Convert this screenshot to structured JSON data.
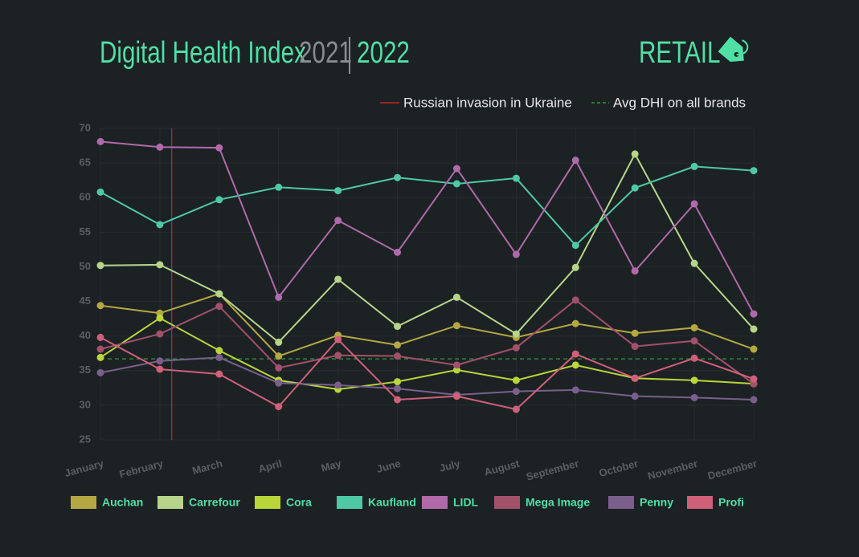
{
  "header": {
    "title": "Digital Health Index",
    "year_previous": "2021",
    "year_current": "2022",
    "section": "RETAIL"
  },
  "chart_data": {
    "type": "line",
    "categories": [
      "January",
      "February",
      "March",
      "April",
      "May",
      "June",
      "July",
      "August",
      "September",
      "October",
      "November",
      "December"
    ],
    "ylim": [
      25,
      70
    ],
    "yticks": [
      25,
      30,
      35,
      40,
      45,
      50,
      55,
      60,
      65,
      70
    ],
    "grid": true,
    "vline": {
      "label": "Russian invasion in Ukraine",
      "x": 1.2,
      "color": "#c0282a"
    },
    "hline": {
      "label": "Avg DHI on all brands",
      "value": 36.7,
      "color": "#2f9a3b"
    },
    "series": [
      {
        "name": "Auchan",
        "color": "#b5a842",
        "values": [
          44.4,
          43.3,
          46.1,
          37.1,
          40.1,
          38.7,
          41.5,
          39.8,
          41.8,
          40.4,
          41.2,
          38.1
        ]
      },
      {
        "name": "Carrefour",
        "color": "#b6d58a",
        "values": [
          50.2,
          50.3,
          46.1,
          39.1,
          48.2,
          41.4,
          45.6,
          40.3,
          49.9,
          66.3,
          50.5,
          41.0
        ]
      },
      {
        "name": "Cora",
        "color": "#b8d63a",
        "values": [
          36.9,
          42.6,
          37.9,
          33.6,
          32.3,
          33.4,
          35.1,
          33.6,
          35.8,
          33.9,
          33.6,
          33.1
        ]
      },
      {
        "name": "Kaufland",
        "color": "#4fc9a4",
        "values": [
          60.8,
          56.1,
          59.7,
          61.5,
          61.0,
          62.9,
          62.0,
          62.8,
          53.1,
          61.4,
          64.5,
          63.9
        ]
      },
      {
        "name": "LIDL",
        "color": "#b06aaa",
        "values": [
          68.1,
          67.3,
          67.2,
          45.6,
          56.7,
          52.1,
          64.2,
          51.8,
          65.4,
          49.4,
          59.1,
          43.2
        ]
      },
      {
        "name": "Mega Image",
        "color": "#a3506a",
        "values": [
          38.1,
          40.3,
          44.3,
          35.4,
          37.2,
          37.1,
          35.8,
          38.3,
          45.2,
          38.5,
          39.3,
          33.1
        ]
      },
      {
        "name": "Penny",
        "color": "#7a5f8d",
        "values": [
          34.7,
          36.4,
          36.9,
          33.2,
          32.9,
          32.4,
          31.5,
          32.0,
          32.2,
          31.3,
          31.1,
          30.8
        ]
      },
      {
        "name": "Profi",
        "color": "#d0607a",
        "values": [
          39.8,
          35.2,
          34.5,
          29.8,
          39.5,
          30.8,
          31.3,
          29.4,
          37.4,
          33.9,
          36.8,
          33.8
        ]
      }
    ]
  }
}
